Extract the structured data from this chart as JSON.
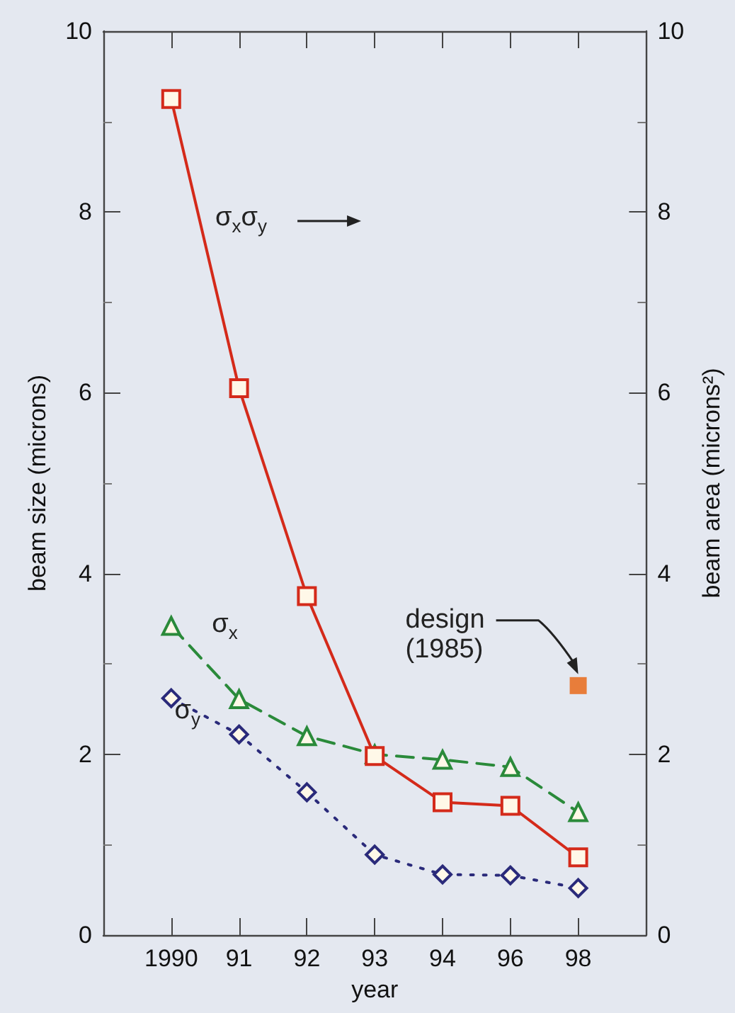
{
  "chart_data": {
    "type": "line",
    "xlabel": "year",
    "ylabel": "beam size (microns)",
    "y2label": "beam area (microns²)",
    "categories": [
      "1990",
      "91",
      "92",
      "93",
      "94",
      "96",
      "98"
    ],
    "series": [
      {
        "name": "σ$_{x}$σ$_{y}$",
        "color": "#d42a1a",
        "marker": "square",
        "line_style": "solid",
        "values": [
          9.25,
          6.05,
          3.75,
          1.98,
          1.47,
          1.43,
          0.86
        ]
      },
      {
        "name": "σ$_{x}$",
        "color": "#2a8a3a",
        "marker": "triangle",
        "line_style": "dashed",
        "values": [
          3.42,
          2.61,
          2.2,
          2.0,
          1.94,
          1.86,
          1.36
        ]
      },
      {
        "name": "σ$_{y}$",
        "color": "#2a2a7a",
        "marker": "diamond",
        "line_style": "dotted",
        "values": [
          2.62,
          2.22,
          1.58,
          0.89,
          0.67,
          0.66,
          0.52
        ]
      },
      {
        "type": "scatter",
        "color": "#e8620c",
        "marker": "square",
        "x": [
          "98"
        ],
        "values": [
          2.76
        ]
      }
    ],
    "annotations": [
      "design (1985)"
    ],
    "ylim": [
      0,
      10
    ],
    "yticks": [
      0,
      2,
      4,
      6,
      8,
      10
    ],
    "y2lim": [
      0,
      10
    ],
    "y2ticks": [
      0,
      2,
      4,
      6,
      8,
      10
    ],
    "grid": false
  }
}
